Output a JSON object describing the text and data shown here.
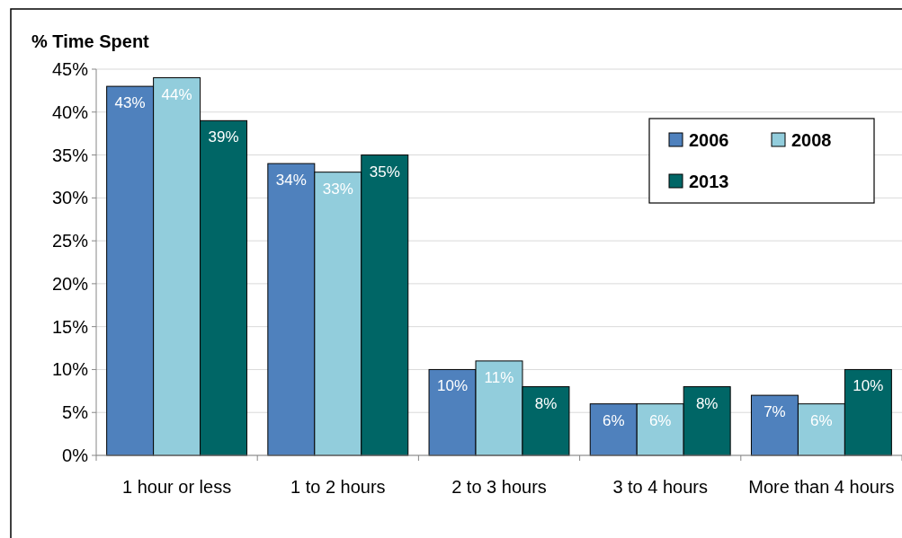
{
  "chart_data": {
    "type": "bar",
    "ylabel": "% Time Spent",
    "categories": [
      "1 hour or less",
      "1 to 2 hours",
      "2 to 3 hours",
      "3 to 4 hours",
      "More than 4 hours"
    ],
    "series": [
      {
        "name": "2006",
        "color": "#4f81bd",
        "values": [
          43,
          34,
          10,
          6,
          7
        ],
        "value_labels": [
          "43%",
          "34%",
          "10%",
          "6%",
          "7%"
        ]
      },
      {
        "name": "2008",
        "color": "#92cddc",
        "values": [
          44,
          33,
          11,
          6,
          6
        ],
        "value_labels": [
          "44%",
          "33%",
          "11%",
          "6%",
          "6%"
        ]
      },
      {
        "name": "2013",
        "color": "#006666",
        "values": [
          39,
          35,
          8,
          8,
          10
        ],
        "value_labels": [
          "39%",
          "35%",
          "8%",
          "8%",
          "10%"
        ]
      }
    ],
    "ylim": [
      0,
      45
    ],
    "yticks": [
      {
        "value": 0,
        "label": "0%"
      },
      {
        "value": 5,
        "label": "5%"
      },
      {
        "value": 10,
        "label": "10%"
      },
      {
        "value": 15,
        "label": "15%"
      },
      {
        "value": 20,
        "label": "20%"
      },
      {
        "value": 25,
        "label": "25%"
      },
      {
        "value": 30,
        "label": "30%"
      },
      {
        "value": 35,
        "label": "35%"
      },
      {
        "value": 40,
        "label": "40%"
      },
      {
        "value": 45,
        "label": "45%"
      }
    ],
    "grid": "y",
    "legend": "top right"
  }
}
